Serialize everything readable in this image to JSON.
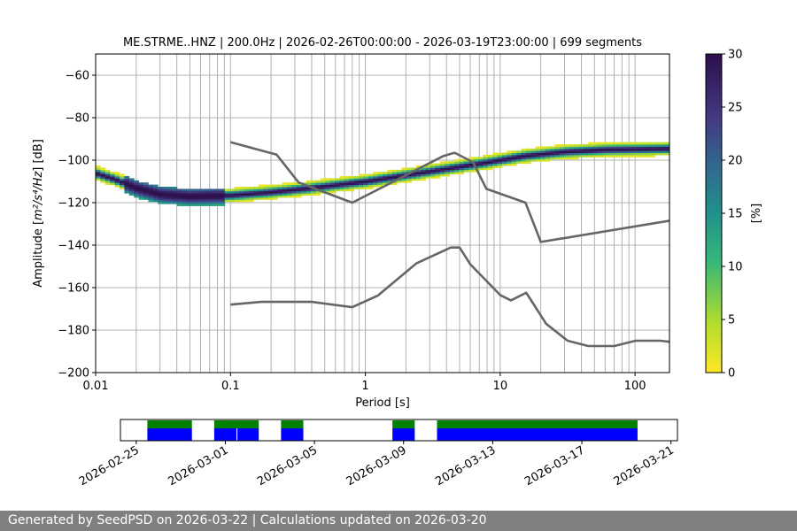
{
  "chart_data": [
    {
      "type": "heatmap",
      "title": "ME.STRME..HNZ | 200.0Hz | 2026-02-26T00:00:00 - 2026-03-19T23:00:00 | 699 segments",
      "xlabel": "Period [s]",
      "ylabel_prefix": "Amplitude [",
      "ylabel_math": "m²/s⁴/Hz",
      "ylabel_suffix": "] [dB]",
      "xscale": "log",
      "xlim": [
        0.01,
        180
      ],
      "ylim": [
        -200,
        -50
      ],
      "xticks": [
        {
          "value": 0.01,
          "label": "0.01"
        },
        {
          "value": 0.1,
          "label": "0.1"
        },
        {
          "value": 1,
          "label": "1"
        },
        {
          "value": 10,
          "label": "10"
        },
        {
          "value": 100,
          "label": "100"
        }
      ],
      "yticks": [
        -60,
        -80,
        -100,
        -120,
        -140,
        -160,
        -180,
        -200
      ],
      "ytick_labels": [
        "−60",
        "−80",
        "−100",
        "−120",
        "−140",
        "−160",
        "−180",
        "−200"
      ],
      "grid": true,
      "colorbar": {
        "label": "[%]",
        "range": [
          0,
          30
        ],
        "ticks": [
          0,
          5,
          10,
          15,
          20,
          25,
          30
        ],
        "colormap": "viridis_r"
      },
      "noise_model_color": "#666666",
      "high_noise_model": [
        [
          0.1,
          -91.5
        ],
        [
          0.22,
          -97.4
        ],
        [
          0.32,
          -110.5
        ],
        [
          0.8,
          -120
        ],
        [
          3.8,
          -98
        ],
        [
          4.6,
          -96.5
        ],
        [
          6.3,
          -101
        ],
        [
          7.9,
          -113.5
        ],
        [
          15.4,
          -120
        ],
        [
          20,
          -138.5
        ],
        [
          180,
          -128.5
        ]
      ],
      "low_noise_model": [
        [
          0.1,
          -168
        ],
        [
          0.17,
          -166.7
        ],
        [
          0.4,
          -166.7
        ],
        [
          0.8,
          -169.2
        ],
        [
          1.24,
          -163.7
        ],
        [
          2.4,
          -148.5
        ],
        [
          4.3,
          -141.1
        ],
        [
          5.0,
          -141.1
        ],
        [
          6.0,
          -149
        ],
        [
          10.0,
          -163.5
        ],
        [
          12.0,
          -166
        ],
        [
          15.6,
          -162.4
        ],
        [
          21.9,
          -177
        ],
        [
          31.6,
          -185
        ],
        [
          45.0,
          -187.5
        ],
        [
          70.0,
          -187.5
        ],
        [
          101,
          -185
        ],
        [
          154,
          -185
        ],
        [
          180,
          -185.5
        ]
      ],
      "psd_ridge": [
        [
          0.01,
          -106
        ],
        [
          0.014,
          -109
        ],
        [
          0.02,
          -113
        ],
        [
          0.03,
          -116
        ],
        [
          0.05,
          -117
        ],
        [
          0.1,
          -116.5
        ],
        [
          0.2,
          -115
        ],
        [
          0.4,
          -113
        ],
        [
          1,
          -110
        ],
        [
          2,
          -107
        ],
        [
          4,
          -104
        ],
        [
          8,
          -101
        ],
        [
          15,
          -98
        ],
        [
          30,
          -96
        ],
        [
          60,
          -95
        ],
        [
          180,
          -94.5
        ]
      ]
    },
    {
      "type": "timeline",
      "xaxis": "date",
      "xlim": [
        "2026-02-24T07:00",
        "2026-03-21T07:00"
      ],
      "xticks": [
        "2026-02-25",
        "2026-03-01",
        "2026-03-05",
        "2026-03-09",
        "2026-03-13",
        "2026-03-17",
        "2026-03-21"
      ],
      "tick_rotation_deg": 30,
      "rows": [
        {
          "color": "#008000",
          "segments": [
            [
              "2026-02-25T12:00",
              "2026-02-27T12:00"
            ],
            [
              "2026-02-28T12:00",
              "2026-03-02T12:00"
            ],
            [
              "2026-03-03T12:00",
              "2026-03-04T12:00"
            ],
            [
              "2026-03-08T12:00",
              "2026-03-09T12:00"
            ],
            [
              "2026-03-10T12:00",
              "2026-03-19T12:00"
            ]
          ]
        },
        {
          "color": "#0000ff",
          "segments": [
            [
              "2026-02-25T12:00",
              "2026-02-27T12:00"
            ],
            [
              "2026-02-28T12:00",
              "2026-03-01T12:00"
            ],
            [
              "2026-03-01T13:00",
              "2026-03-02T12:00"
            ],
            [
              "2026-03-03T12:00",
              "2026-03-04T12:00"
            ],
            [
              "2026-03-08T12:00",
              "2026-03-09T12:00"
            ],
            [
              "2026-03-10T12:00",
              "2026-03-19T12:00"
            ]
          ]
        }
      ]
    }
  ],
  "footer": {
    "text": "Generated by SeedPSD on 2026-03-22 | Calculations updated on 2026-03-20"
  }
}
